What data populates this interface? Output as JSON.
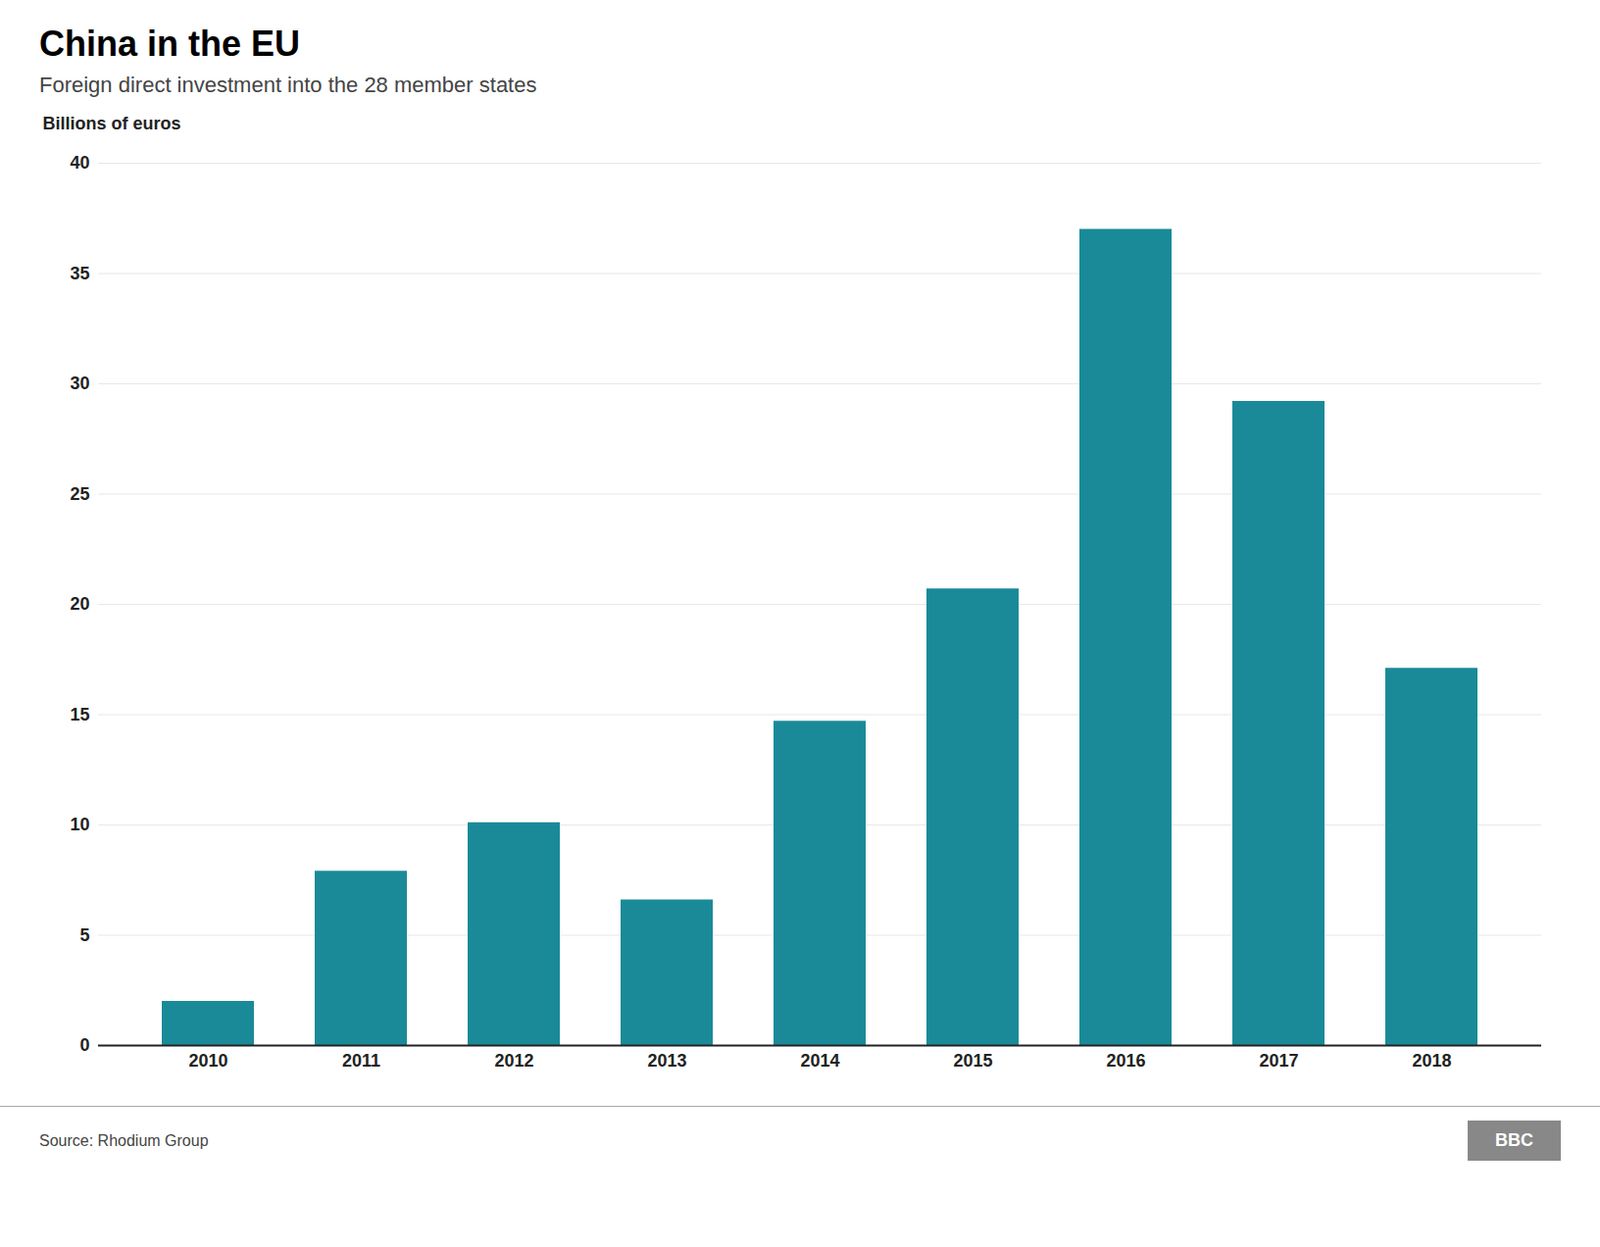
{
  "chart_data": {
    "type": "bar",
    "title": "China in the EU",
    "subtitle": "Foreign direct investment into the 28 member states",
    "ylabel": "Billions of euros",
    "source": "Source: Rhodium Group",
    "annotations": [
      "BBC"
    ],
    "categories": [
      "2010",
      "2011",
      "2012",
      "2013",
      "2014",
      "2015",
      "2016",
      "2017",
      "2018"
    ],
    "values": [
      2.0,
      7.9,
      10.1,
      6.6,
      14.7,
      20.7,
      37.0,
      29.2,
      17.1
    ],
    "color": "#1a8a99",
    "ylim": [
      0,
      40
    ],
    "yticks": [
      0,
      5,
      10,
      15,
      20,
      25,
      30,
      35,
      40
    ],
    "grid": true
  }
}
